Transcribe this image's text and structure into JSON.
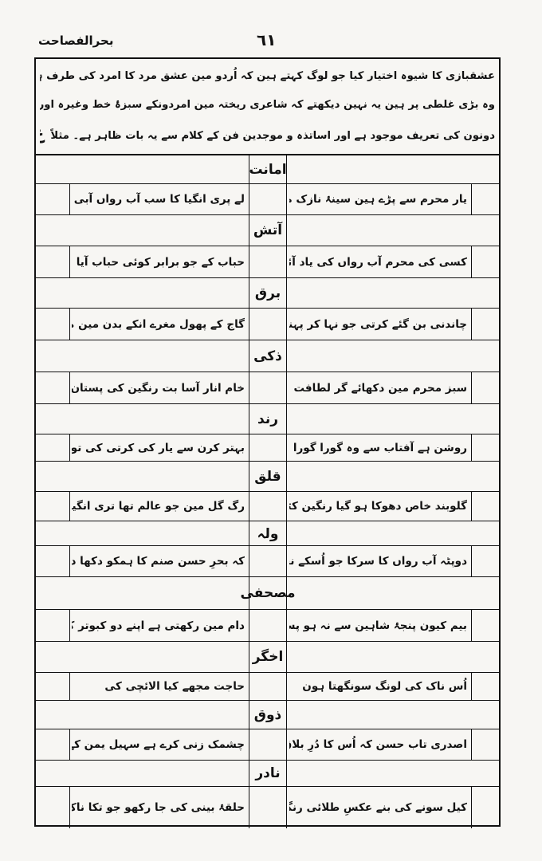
{
  "header": {
    "book_title": "بحرالفصاحت",
    "page_number": "٦١"
  },
  "intro": {
    "lines": [
      "عشقبازی کا شیوہ اختیار کیا جو لوگ کہتے ہین کہ اُردو مین عشق مرد کا امرد کی طرف ہے نہ عورت کی طرف",
      "وہ بڑی غلطی پر ہین یہ نہین دیکھتے کہ شاعری ریختہ مین امردونکے سبزۂ خط وغیرہ اور عورتونکی پستان وغیرہ",
      "دونون کی تعریف موجود ہے اور اساتذہ و موجدین فن کے کلام سے یہ بات ظاہر ہے۔ مثلاً"
    ],
    "misra_mark": "ع"
  },
  "entries": [
    {
      "poet": "امانت",
      "first": "یار محرم سے پڑے ہین سینۂ نازک مین نیل",
      "second": "لے پری انگیا کا سب آب رواں آبی ہوا"
    },
    {
      "poet": "آتش",
      "first": "کسی کی محرم آب رواں کی یاد آئی",
      "second": "حباب کے جو برابر کوئی حباب آیا"
    },
    {
      "poet": "برق",
      "first": "چاندنی بن گئے کرتی جو نہا کر پہنی",
      "second": "گاج کے پھول مغرے انکے بدن مین مہتاب"
    },
    {
      "poet": "ذکی",
      "first": "سبز محرم مین دکھائے گر لطافت حسن کی",
      "second": "خام انار آسا بت رنگین کی پستان سبز ہو"
    },
    {
      "poet": "رند",
      "first": "روشن ہے آفتاب سے وہ گورا گورا پیٹ",
      "second": "بہتر کرن سے یار کی کرتی کی تونی ہے"
    },
    {
      "poet": "قلق",
      "first": "گلوبند خاص دھوکا ہو گیا رنگین کٹوریکا",
      "second": "رگ گل مین جو عالم تھا تری انگیا کے ڈوریکا"
    },
    {
      "poet": "ولہ",
      "first": "دوپٹہ آب رواں کا سرکا جو اُسکے نحر سے سمجھے ہم",
      "second": "کہ بحرِ حسن صنم کا ہمکو دکھا دیا ہے حباب اُبھرا"
    },
    {
      "poet": "مصحفی",
      "first": "بیم کیون پنجۂ شاہین سے نہ ہو پستان کو",
      "second": "دام مین رکھتی ہے اپنے دو کبوتر کرتی"
    },
    {
      "poet": "اخگر",
      "first": "اُس ناک کی لونگ سونگھتا ہون",
      "second": "حاجت مجھے کیا الائچی کی"
    },
    {
      "poet": "ذوق",
      "first": "اصدری تاب حسن کہ اُس کا دُرِ بلاق",
      "second": "چشمک زنی کرے ہے سہیل یمن کے ساتھ"
    },
    {
      "poet": "نادر",
      "first": "کیل سونے کی بنے عکسِ طلائی رنگ سے",
      "second": "حلقۂ بینی کی جا رکھو جو تکا ناک مین"
    }
  ]
}
